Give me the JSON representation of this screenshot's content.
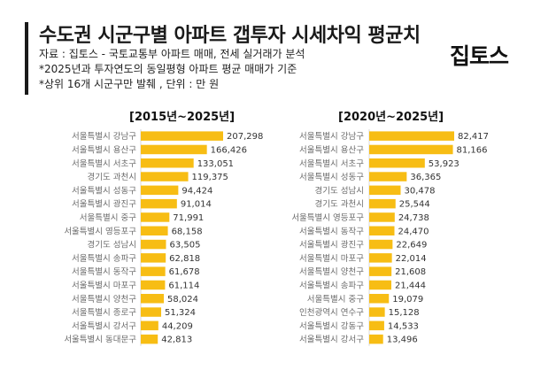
{
  "header": {
    "title": "수도권 시군구별 아파트 갭투자 시세차익 평균치",
    "notes": [
      "자료 : 집토스 - 국토교통부 아파트 매매, 전세 실거래가 분석",
      "*2025년과 투자연도의 동일평형 아파트 평균 매매가 기준",
      "*상위 16개 시군구만 발췌 , 단위 : 만 원"
    ],
    "brand": "집토스"
  },
  "colors": {
    "bar": "#F7BD14",
    "accent": "#1a1a1a"
  },
  "chart_data": [
    {
      "type": "bar",
      "orientation": "horizontal",
      "title": "[2015년~2025년]",
      "categories": [
        "서울특별시 강남구",
        "서울특별시 용산구",
        "서울특별시 서초구",
        "경기도 과천시",
        "서울특별시 성동구",
        "서울특별시 광진구",
        "서울특별시 중구",
        "서울특별시 영등포구",
        "경기도 성남시",
        "서울특별시 송파구",
        "서울특별시 동작구",
        "서울특별시 마포구",
        "서울특별시 양천구",
        "서울특별시 종로구",
        "서울특별시 강서구",
        "서울특별시 동대문구"
      ],
      "values": [
        207298,
        166426,
        133051,
        119375,
        94424,
        91014,
        71991,
        68158,
        63505,
        62818,
        61678,
        61114,
        58024,
        51324,
        44209,
        42813
      ],
      "labels": [
        "207,298",
        "166,426",
        "133,051",
        "119,375",
        "94,424",
        "91,014",
        "71,991",
        "68,158",
        "63,505",
        "62,818",
        "61,678",
        "61,114",
        "58,024",
        "51,324",
        "44,209",
        "42,813"
      ]
    },
    {
      "type": "bar",
      "orientation": "horizontal",
      "title": "[2020년~2025년]",
      "categories": [
        "서울특별시 강남구",
        "서울특별시 용산구",
        "서울특별시 서초구",
        "서울특별시 성동구",
        "경기도 성남시",
        "경기도 과천시",
        "서울특별시 영등포구",
        "서울특별시 동작구",
        "서울특별시 광진구",
        "서울특별시 마포구",
        "서울특별시 양천구",
        "서울특별시 송파구",
        "서울특별시 중구",
        "인천광역시 연수구",
        "서울특별시 강동구",
        "서울특별시 강서구"
      ],
      "values": [
        82417,
        81166,
        53923,
        36365,
        30478,
        25544,
        24738,
        24470,
        22649,
        22014,
        21608,
        21444,
        19079,
        15128,
        14533,
        13496
      ],
      "labels": [
        "82,417",
        "81,166",
        "53,923",
        "36,365",
        "30,478",
        "25,544",
        "24,738",
        "24,470",
        "22,649",
        "22,014",
        "21,608",
        "21,444",
        "19,079",
        "15,128",
        "14,533",
        "13,496"
      ]
    }
  ]
}
